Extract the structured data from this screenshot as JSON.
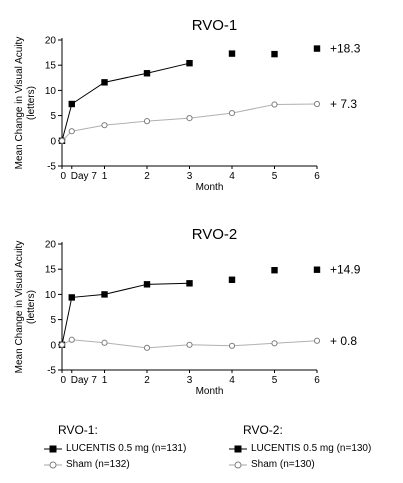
{
  "colors": {
    "lucentis": "#000000",
    "sham": "#a6a6a6"
  },
  "legend": {
    "groups": [
      {
        "heading": "RVO-1:",
        "lucentis": "LUCENTIS 0.5 mg (n=131)",
        "sham": "Sham (n=132)"
      },
      {
        "heading": "RVO-2:",
        "lucentis": "LUCENTIS 0.5 mg (n=130)",
        "sham": "Sham (n=130)"
      }
    ]
  },
  "chart_data": [
    {
      "type": "line",
      "title": "RVO-1",
      "xlabel": "Month",
      "ylabel": "Mean Change in Visual Acuity (letters)",
      "x_ticks": [
        "0",
        "Day 7",
        "1",
        "2",
        "3",
        "4",
        "5",
        "6"
      ],
      "x_values": [
        0,
        0.23,
        1,
        2,
        3,
        4,
        5,
        6
      ],
      "xlim": [
        0,
        6
      ],
      "ylim": [
        -5,
        20
      ],
      "y_ticks": [
        -5,
        0,
        5,
        10,
        15,
        20
      ],
      "grid": false,
      "series": [
        {
          "key": "lucentis",
          "values": [
            0,
            7.3,
            11.6,
            13.4,
            15.4,
            17.3,
            17.2,
            18.3
          ],
          "connected_through": 4,
          "end_label": "+18.3"
        },
        {
          "key": "sham",
          "values": [
            0,
            1.9,
            3.1,
            3.9,
            4.5,
            5.5,
            7.2,
            7.3
          ],
          "connected_through": 7,
          "end_label": "+ 7.3"
        }
      ]
    },
    {
      "type": "line",
      "title": "RVO-2",
      "xlabel": "Month",
      "ylabel": "Mean Change in Visual Acuity (letters)",
      "x_ticks": [
        "0",
        "Day 7",
        "1",
        "2",
        "3",
        "4",
        "5",
        "6"
      ],
      "x_values": [
        0,
        0.23,
        1,
        2,
        3,
        4,
        5,
        6
      ],
      "xlim": [
        0,
        6
      ],
      "ylim": [
        -5,
        20
      ],
      "y_ticks": [
        -5,
        0,
        5,
        10,
        15,
        20
      ],
      "grid": false,
      "series": [
        {
          "key": "lucentis",
          "values": [
            0,
            9.4,
            10,
            12,
            12.2,
            12.9,
            14.8,
            14.9
          ],
          "connected_through": 4,
          "end_label": "+14.9"
        },
        {
          "key": "sham",
          "values": [
            0,
            1,
            0.4,
            -0.6,
            0,
            -0.2,
            0.3,
            0.8
          ],
          "connected_through": 7,
          "end_label": "+ 0.8"
        }
      ]
    }
  ]
}
